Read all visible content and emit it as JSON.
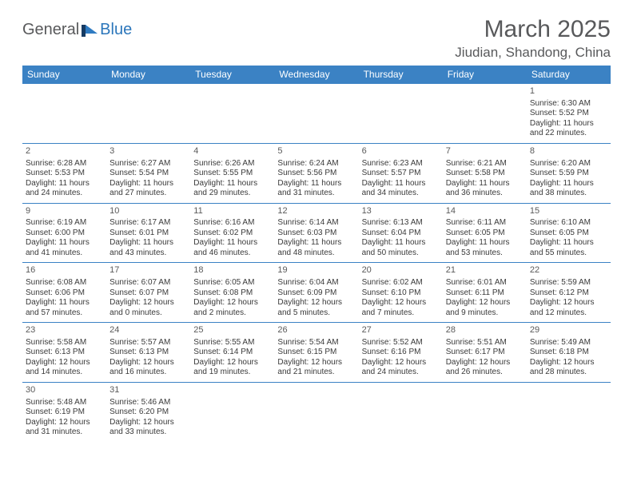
{
  "logo": {
    "general": "General",
    "blue": "Blue"
  },
  "title": "March 2025",
  "location": "Jiudian, Shandong, China",
  "colors": {
    "header_bg": "#3b82c4",
    "header_text": "#ffffff",
    "border": "#3b82c4",
    "body_text": "#3a3a3a",
    "title_text": "#58595b",
    "logo_gray": "#58595b",
    "logo_blue": "#2b76bb"
  },
  "weekdays": [
    "Sunday",
    "Monday",
    "Tuesday",
    "Wednesday",
    "Thursday",
    "Friday",
    "Saturday"
  ],
  "weeks": [
    [
      null,
      null,
      null,
      null,
      null,
      null,
      {
        "n": "1",
        "sr": "Sunrise: 6:30 AM",
        "ss": "Sunset: 5:52 PM",
        "d1": "Daylight: 11 hours",
        "d2": "and 22 minutes."
      }
    ],
    [
      {
        "n": "2",
        "sr": "Sunrise: 6:28 AM",
        "ss": "Sunset: 5:53 PM",
        "d1": "Daylight: 11 hours",
        "d2": "and 24 minutes."
      },
      {
        "n": "3",
        "sr": "Sunrise: 6:27 AM",
        "ss": "Sunset: 5:54 PM",
        "d1": "Daylight: 11 hours",
        "d2": "and 27 minutes."
      },
      {
        "n": "4",
        "sr": "Sunrise: 6:26 AM",
        "ss": "Sunset: 5:55 PM",
        "d1": "Daylight: 11 hours",
        "d2": "and 29 minutes."
      },
      {
        "n": "5",
        "sr": "Sunrise: 6:24 AM",
        "ss": "Sunset: 5:56 PM",
        "d1": "Daylight: 11 hours",
        "d2": "and 31 minutes."
      },
      {
        "n": "6",
        "sr": "Sunrise: 6:23 AM",
        "ss": "Sunset: 5:57 PM",
        "d1": "Daylight: 11 hours",
        "d2": "and 34 minutes."
      },
      {
        "n": "7",
        "sr": "Sunrise: 6:21 AM",
        "ss": "Sunset: 5:58 PM",
        "d1": "Daylight: 11 hours",
        "d2": "and 36 minutes."
      },
      {
        "n": "8",
        "sr": "Sunrise: 6:20 AM",
        "ss": "Sunset: 5:59 PM",
        "d1": "Daylight: 11 hours",
        "d2": "and 38 minutes."
      }
    ],
    [
      {
        "n": "9",
        "sr": "Sunrise: 6:19 AM",
        "ss": "Sunset: 6:00 PM",
        "d1": "Daylight: 11 hours",
        "d2": "and 41 minutes."
      },
      {
        "n": "10",
        "sr": "Sunrise: 6:17 AM",
        "ss": "Sunset: 6:01 PM",
        "d1": "Daylight: 11 hours",
        "d2": "and 43 minutes."
      },
      {
        "n": "11",
        "sr": "Sunrise: 6:16 AM",
        "ss": "Sunset: 6:02 PM",
        "d1": "Daylight: 11 hours",
        "d2": "and 46 minutes."
      },
      {
        "n": "12",
        "sr": "Sunrise: 6:14 AM",
        "ss": "Sunset: 6:03 PM",
        "d1": "Daylight: 11 hours",
        "d2": "and 48 minutes."
      },
      {
        "n": "13",
        "sr": "Sunrise: 6:13 AM",
        "ss": "Sunset: 6:04 PM",
        "d1": "Daylight: 11 hours",
        "d2": "and 50 minutes."
      },
      {
        "n": "14",
        "sr": "Sunrise: 6:11 AM",
        "ss": "Sunset: 6:05 PM",
        "d1": "Daylight: 11 hours",
        "d2": "and 53 minutes."
      },
      {
        "n": "15",
        "sr": "Sunrise: 6:10 AM",
        "ss": "Sunset: 6:05 PM",
        "d1": "Daylight: 11 hours",
        "d2": "and 55 minutes."
      }
    ],
    [
      {
        "n": "16",
        "sr": "Sunrise: 6:08 AM",
        "ss": "Sunset: 6:06 PM",
        "d1": "Daylight: 11 hours",
        "d2": "and 57 minutes."
      },
      {
        "n": "17",
        "sr": "Sunrise: 6:07 AM",
        "ss": "Sunset: 6:07 PM",
        "d1": "Daylight: 12 hours",
        "d2": "and 0 minutes."
      },
      {
        "n": "18",
        "sr": "Sunrise: 6:05 AM",
        "ss": "Sunset: 6:08 PM",
        "d1": "Daylight: 12 hours",
        "d2": "and 2 minutes."
      },
      {
        "n": "19",
        "sr": "Sunrise: 6:04 AM",
        "ss": "Sunset: 6:09 PM",
        "d1": "Daylight: 12 hours",
        "d2": "and 5 minutes."
      },
      {
        "n": "20",
        "sr": "Sunrise: 6:02 AM",
        "ss": "Sunset: 6:10 PM",
        "d1": "Daylight: 12 hours",
        "d2": "and 7 minutes."
      },
      {
        "n": "21",
        "sr": "Sunrise: 6:01 AM",
        "ss": "Sunset: 6:11 PM",
        "d1": "Daylight: 12 hours",
        "d2": "and 9 minutes."
      },
      {
        "n": "22",
        "sr": "Sunrise: 5:59 AM",
        "ss": "Sunset: 6:12 PM",
        "d1": "Daylight: 12 hours",
        "d2": "and 12 minutes."
      }
    ],
    [
      {
        "n": "23",
        "sr": "Sunrise: 5:58 AM",
        "ss": "Sunset: 6:13 PM",
        "d1": "Daylight: 12 hours",
        "d2": "and 14 minutes."
      },
      {
        "n": "24",
        "sr": "Sunrise: 5:57 AM",
        "ss": "Sunset: 6:13 PM",
        "d1": "Daylight: 12 hours",
        "d2": "and 16 minutes."
      },
      {
        "n": "25",
        "sr": "Sunrise: 5:55 AM",
        "ss": "Sunset: 6:14 PM",
        "d1": "Daylight: 12 hours",
        "d2": "and 19 minutes."
      },
      {
        "n": "26",
        "sr": "Sunrise: 5:54 AM",
        "ss": "Sunset: 6:15 PM",
        "d1": "Daylight: 12 hours",
        "d2": "and 21 minutes."
      },
      {
        "n": "27",
        "sr": "Sunrise: 5:52 AM",
        "ss": "Sunset: 6:16 PM",
        "d1": "Daylight: 12 hours",
        "d2": "and 24 minutes."
      },
      {
        "n": "28",
        "sr": "Sunrise: 5:51 AM",
        "ss": "Sunset: 6:17 PM",
        "d1": "Daylight: 12 hours",
        "d2": "and 26 minutes."
      },
      {
        "n": "29",
        "sr": "Sunrise: 5:49 AM",
        "ss": "Sunset: 6:18 PM",
        "d1": "Daylight: 12 hours",
        "d2": "and 28 minutes."
      }
    ],
    [
      {
        "n": "30",
        "sr": "Sunrise: 5:48 AM",
        "ss": "Sunset: 6:19 PM",
        "d1": "Daylight: 12 hours",
        "d2": "and 31 minutes."
      },
      {
        "n": "31",
        "sr": "Sunrise: 5:46 AM",
        "ss": "Sunset: 6:20 PM",
        "d1": "Daylight: 12 hours",
        "d2": "and 33 minutes."
      },
      null,
      null,
      null,
      null,
      null
    ]
  ]
}
